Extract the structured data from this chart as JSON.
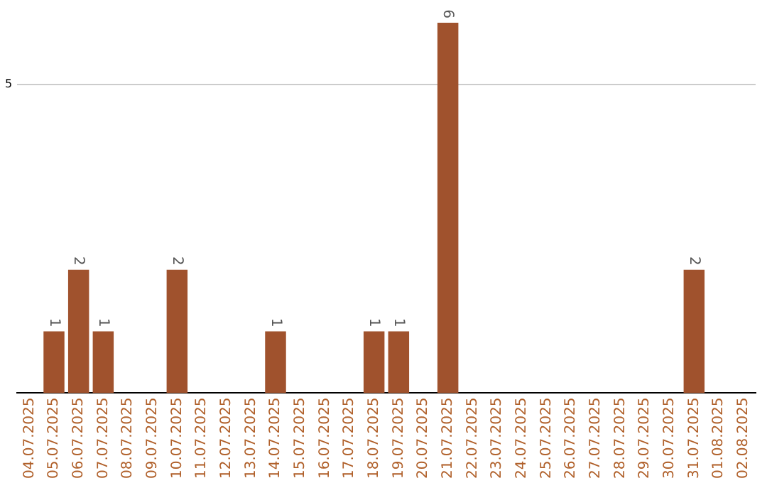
{
  "chart_data": {
    "type": "bar",
    "categories": [
      "04.07.2025",
      "05.07.2025",
      "06.07.2025",
      "07.07.2025",
      "08.07.2025",
      "09.07.2025",
      "10.07.2025",
      "11.07.2025",
      "12.07.2025",
      "13.07.2025",
      "14.07.2025",
      "15.07.2025",
      "16.07.2025",
      "17.07.2025",
      "18.07.2025",
      "19.07.2025",
      "20.07.2025",
      "21.07.2025",
      "22.07.2025",
      "23.07.2025",
      "24.07.2025",
      "25.07.2025",
      "26.07.2025",
      "27.07.2025",
      "28.07.2025",
      "29.07.2025",
      "30.07.2025",
      "31.07.2025",
      "01.08.2025",
      "02.08.2025"
    ],
    "values": [
      0,
      1,
      2,
      1,
      0,
      0,
      2,
      0,
      0,
      0,
      1,
      0,
      0,
      0,
      1,
      1,
      0,
      6,
      0,
      0,
      0,
      0,
      0,
      0,
      0,
      0,
      0,
      2,
      0,
      0
    ],
    "value_labels": [
      null,
      "1",
      "2",
      "1",
      null,
      null,
      "2",
      null,
      null,
      null,
      "1",
      null,
      null,
      null,
      "1",
      "1",
      null,
      "6",
      null,
      null,
      null,
      null,
      null,
      null,
      null,
      null,
      null,
      "2",
      null,
      null
    ],
    "color": "#a0522d",
    "ref_lines": [
      {
        "axis": "y",
        "value": 5,
        "label": "5",
        "color": "#cccccc"
      }
    ],
    "legend": false
  }
}
